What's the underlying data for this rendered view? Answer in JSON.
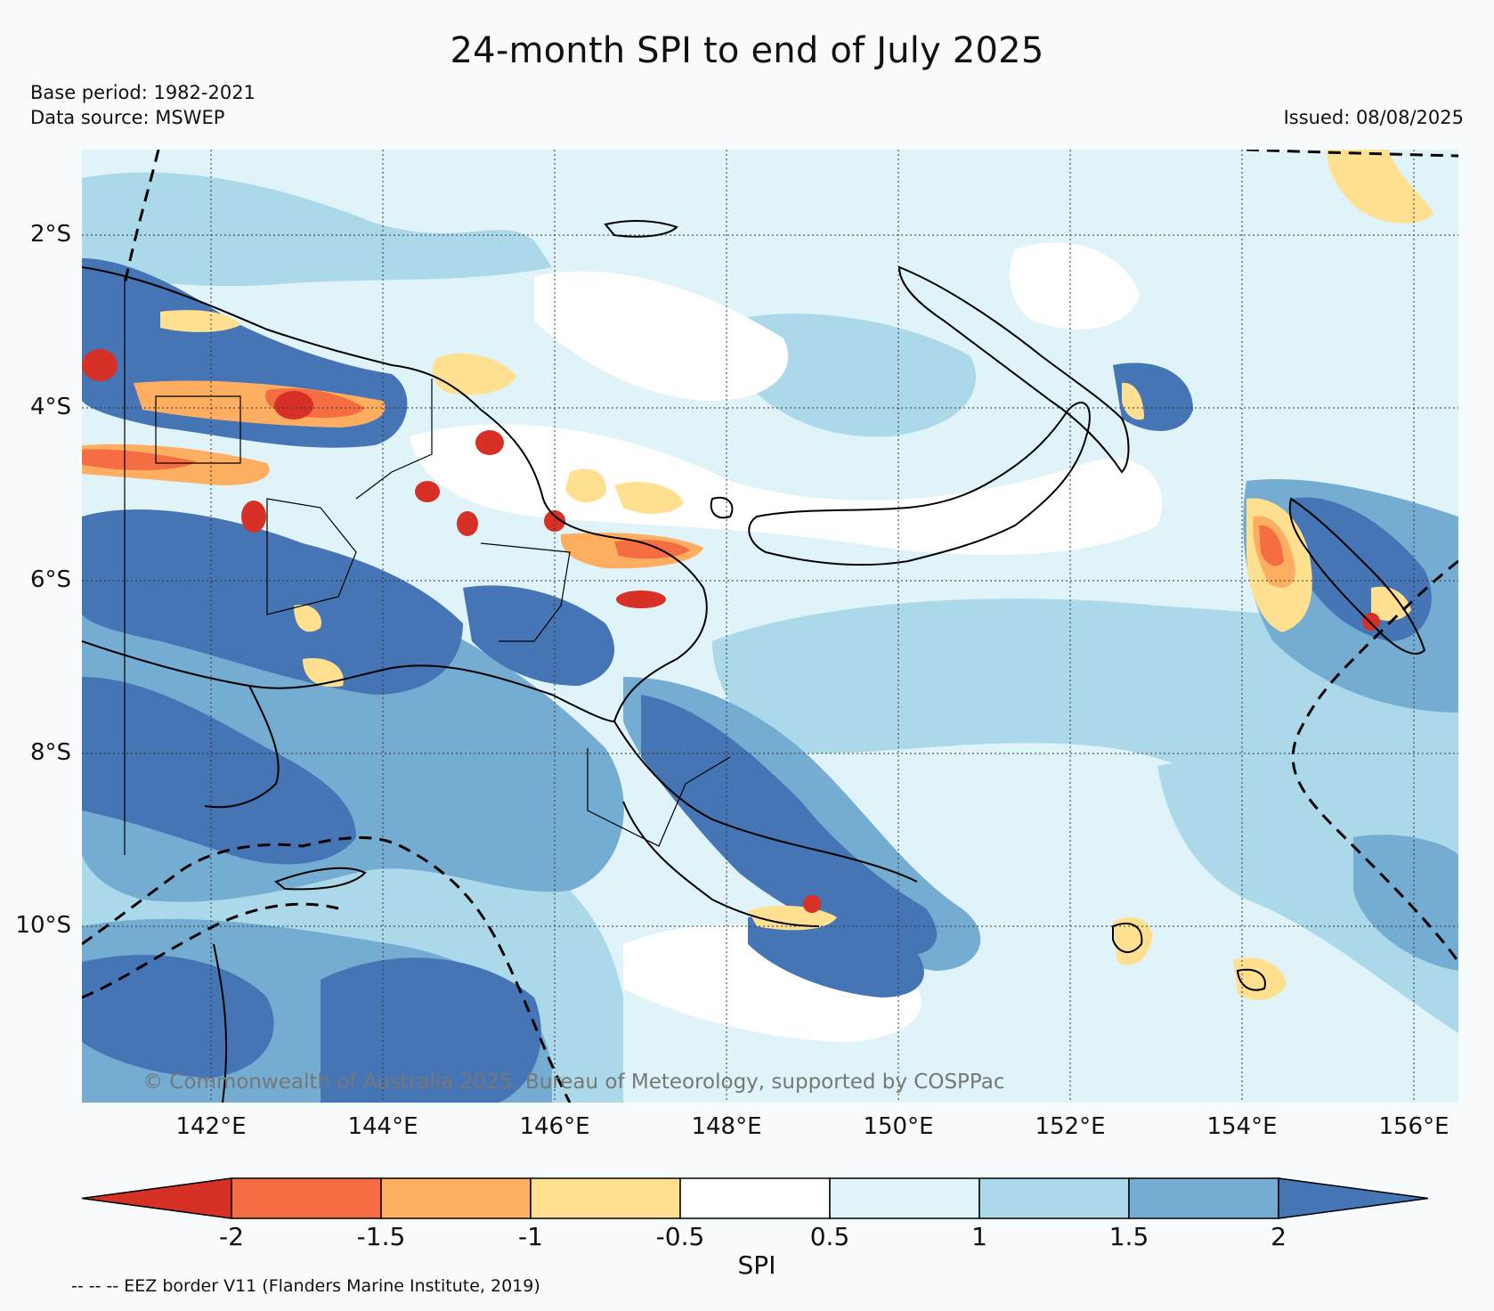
{
  "title": "24-month SPI to end of July 2025",
  "base_period": "Base period: 1982-2021",
  "data_source": "Data source: MSWEP",
  "issued": "Issued: 08/08/2025",
  "copyright": "© Commonwealth of Australia 2025, Bureau of Meteorology, supported by COSPPac",
  "lat_labels": [
    "2°S",
    "4°S",
    "6°S",
    "8°S",
    "10°S"
  ],
  "lon_labels": [
    "142°E",
    "144°E",
    "146°E",
    "148°E",
    "150°E",
    "152°E",
    "154°E",
    "156°E"
  ],
  "colorbar": {
    "label": "SPI",
    "ticks": [
      "-2",
      "-1.5",
      "-1",
      "-0.5",
      "0.5",
      "1",
      "1.5",
      "2"
    ],
    "colors": [
      "#d73027",
      "#f46d43",
      "#fdae61",
      "#fee090",
      "#ffffff",
      "#e0f3f8",
      "#abd9e9",
      "#74add1",
      "#4575b4"
    ]
  },
  "eez_note": "-- -- -- EEZ border V11 (Flanders Marine Institute, 2019)",
  "colors": {
    "very_wet": "#4575b4",
    "wet": "#74add1",
    "moderately_wet": "#abd9e9",
    "slightly_wet": "#e0f3f8",
    "near_normal": "#ffffff",
    "slightly_dry": "#fee090",
    "moderately_dry": "#fdae61",
    "dry": "#f46d43",
    "very_dry": "#d73027"
  }
}
